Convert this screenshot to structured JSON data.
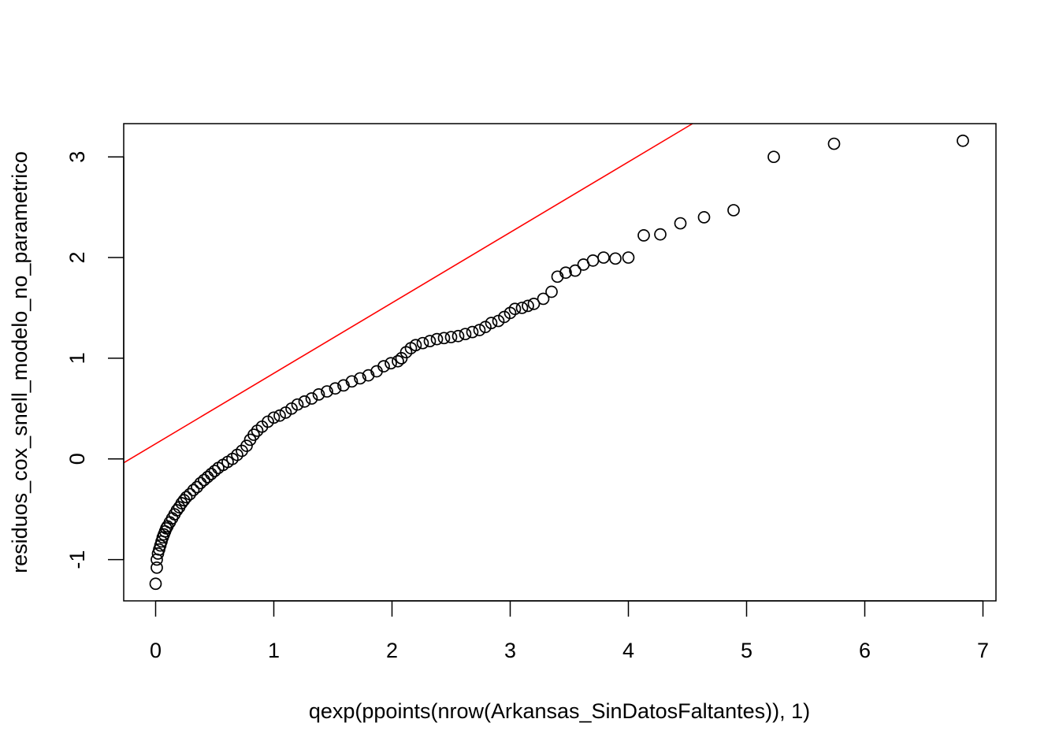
{
  "chart_data": {
    "type": "scatter",
    "title": "",
    "xlabel": "qexp(ppoints(nrow(Arkansas_SinDatosFaltantes)), 1)",
    "ylabel": "residuos_cox_snell_modelo_no_parametrico",
    "xlim": [
      -0.27,
      7.11
    ],
    "ylim": [
      -1.41,
      3.33
    ],
    "x_ticks": [
      0,
      1,
      2,
      3,
      4,
      5,
      6,
      7
    ],
    "y_ticks": [
      -1,
      0,
      1,
      2,
      3
    ],
    "grid": false,
    "legend": "none",
    "reference_line": {
      "intercept": 0.15,
      "slope": 0.7,
      "color": "#ff0000"
    },
    "point_color": "#000000",
    "series": [
      {
        "marker": "open-circle",
        "points": [
          [
            0.0,
            -1.24
          ],
          [
            0.01,
            -1.08
          ],
          [
            0.01,
            -1.0
          ],
          [
            0.02,
            -0.94
          ],
          [
            0.03,
            -0.9
          ],
          [
            0.04,
            -0.86
          ],
          [
            0.05,
            -0.82
          ],
          [
            0.06,
            -0.78
          ],
          [
            0.07,
            -0.75
          ],
          [
            0.08,
            -0.72
          ],
          [
            0.09,
            -0.69
          ],
          [
            0.1,
            -0.67
          ],
          [
            0.12,
            -0.63
          ],
          [
            0.14,
            -0.59
          ],
          [
            0.16,
            -0.55
          ],
          [
            0.18,
            -0.51
          ],
          [
            0.2,
            -0.48
          ],
          [
            0.22,
            -0.44
          ],
          [
            0.24,
            -0.41
          ],
          [
            0.26,
            -0.38
          ],
          [
            0.29,
            -0.35
          ],
          [
            0.32,
            -0.31
          ],
          [
            0.35,
            -0.28
          ],
          [
            0.38,
            -0.24
          ],
          [
            0.41,
            -0.21
          ],
          [
            0.44,
            -0.18
          ],
          [
            0.47,
            -0.15
          ],
          [
            0.5,
            -0.12
          ],
          [
            0.53,
            -0.09
          ],
          [
            0.57,
            -0.06
          ],
          [
            0.61,
            -0.03
          ],
          [
            0.65,
            0.0
          ],
          [
            0.69,
            0.04
          ],
          [
            0.73,
            0.08
          ],
          [
            0.77,
            0.13
          ],
          [
            0.8,
            0.19
          ],
          [
            0.83,
            0.24
          ],
          [
            0.86,
            0.28
          ],
          [
            0.9,
            0.32
          ],
          [
            0.95,
            0.37
          ],
          [
            1.0,
            0.41
          ],
          [
            1.05,
            0.43
          ],
          [
            1.1,
            0.46
          ],
          [
            1.15,
            0.5
          ],
          [
            1.2,
            0.54
          ],
          [
            1.26,
            0.57
          ],
          [
            1.32,
            0.6
          ],
          [
            1.38,
            0.64
          ],
          [
            1.45,
            0.67
          ],
          [
            1.52,
            0.7
          ],
          [
            1.59,
            0.73
          ],
          [
            1.66,
            0.77
          ],
          [
            1.73,
            0.8
          ],
          [
            1.8,
            0.83
          ],
          [
            1.87,
            0.87
          ],
          [
            1.93,
            0.92
          ],
          [
            1.99,
            0.95
          ],
          [
            2.05,
            0.97
          ],
          [
            2.08,
            1.0
          ],
          [
            2.12,
            1.06
          ],
          [
            2.16,
            1.1
          ],
          [
            2.2,
            1.13
          ],
          [
            2.26,
            1.15
          ],
          [
            2.32,
            1.17
          ],
          [
            2.38,
            1.19
          ],
          [
            2.44,
            1.2
          ],
          [
            2.5,
            1.21
          ],
          [
            2.56,
            1.22
          ],
          [
            2.62,
            1.24
          ],
          [
            2.68,
            1.26
          ],
          [
            2.74,
            1.28
          ],
          [
            2.79,
            1.31
          ],
          [
            2.84,
            1.35
          ],
          [
            2.9,
            1.37
          ],
          [
            2.95,
            1.41
          ],
          [
            3.0,
            1.45
          ],
          [
            3.04,
            1.49
          ],
          [
            3.1,
            1.5
          ],
          [
            3.15,
            1.52
          ],
          [
            3.2,
            1.54
          ],
          [
            3.28,
            1.59
          ],
          [
            3.35,
            1.66
          ],
          [
            3.4,
            1.81
          ],
          [
            3.47,
            1.85
          ],
          [
            3.55,
            1.87
          ],
          [
            3.62,
            1.93
          ],
          [
            3.7,
            1.97
          ],
          [
            3.79,
            2.0
          ],
          [
            3.89,
            1.99
          ],
          [
            4.0,
            2.0
          ],
          [
            4.13,
            2.22
          ],
          [
            4.27,
            2.23
          ],
          [
            4.44,
            2.34
          ],
          [
            4.64,
            2.4
          ],
          [
            4.89,
            2.47
          ],
          [
            5.23,
            3.0
          ],
          [
            5.74,
            3.13
          ],
          [
            6.83,
            3.16
          ]
        ]
      }
    ]
  }
}
